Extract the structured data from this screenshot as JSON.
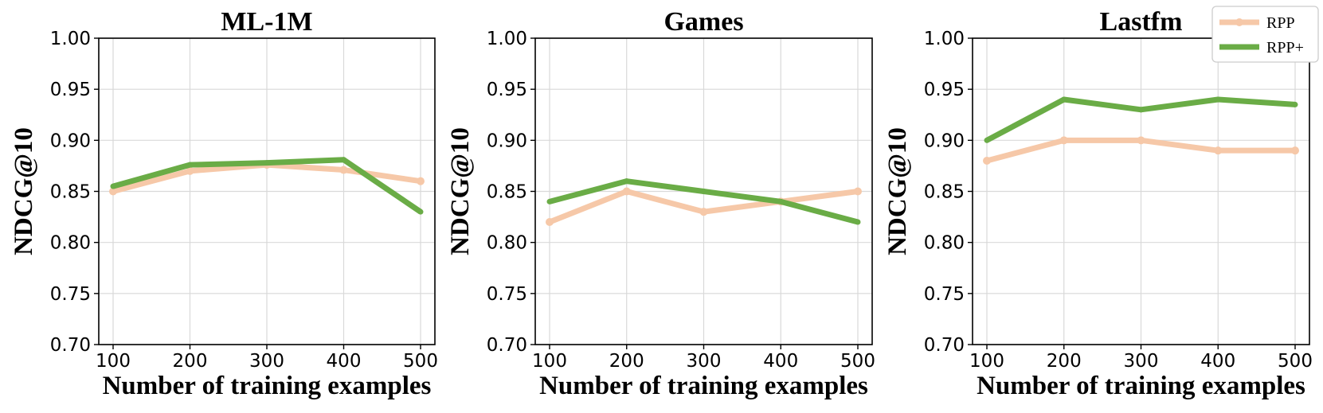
{
  "chart_data": [
    {
      "type": "line",
      "title": "ML-1M",
      "xlabel": "Number of training examples",
      "ylabel": "NDCG@10",
      "x": [
        100,
        200,
        300,
        400,
        500
      ],
      "xticks": [
        "100",
        "200",
        "300",
        "400",
        "500"
      ],
      "yticks": [
        "0.70",
        "0.75",
        "0.80",
        "0.85",
        "0.90",
        "0.95",
        "1.00"
      ],
      "ylim": [
        0.7,
        1.0
      ],
      "grid": true,
      "series": [
        {
          "name": "RPP",
          "values": [
            0.85,
            0.87,
            0.876,
            0.871,
            0.86
          ]
        },
        {
          "name": "RPP+",
          "values": [
            0.855,
            0.876,
            0.878,
            0.881,
            0.83
          ]
        }
      ]
    },
    {
      "type": "line",
      "title": "Games",
      "xlabel": "Number of training examples",
      "ylabel": "NDCG@10",
      "x": [
        100,
        200,
        300,
        400,
        500
      ],
      "xticks": [
        "100",
        "200",
        "300",
        "400",
        "500"
      ],
      "yticks": [
        "0.70",
        "0.75",
        "0.80",
        "0.85",
        "0.90",
        "0.95",
        "1.00"
      ],
      "ylim": [
        0.7,
        1.0
      ],
      "grid": true,
      "series": [
        {
          "name": "RPP",
          "values": [
            0.82,
            0.85,
            0.83,
            0.84,
            0.85
          ]
        },
        {
          "name": "RPP+",
          "values": [
            0.84,
            0.86,
            0.85,
            0.84,
            0.82
          ]
        }
      ]
    },
    {
      "type": "line",
      "title": "Lastfm",
      "xlabel": "Number of training examples",
      "ylabel": "NDCG@10",
      "x": [
        100,
        200,
        300,
        400,
        500
      ],
      "xticks": [
        "100",
        "200",
        "300",
        "400",
        "500"
      ],
      "yticks": [
        "0.70",
        "0.75",
        "0.80",
        "0.85",
        "0.90",
        "0.95",
        "1.00"
      ],
      "ylim": [
        0.7,
        1.0
      ],
      "grid": true,
      "series": [
        {
          "name": "RPP",
          "values": [
            0.88,
            0.9,
            0.9,
            0.89,
            0.89
          ]
        },
        {
          "name": "RPP+",
          "values": [
            0.9,
            0.94,
            0.93,
            0.94,
            0.935
          ]
        }
      ]
    }
  ],
  "legend": {
    "placement": "top-right",
    "entries": [
      {
        "label": "RPP",
        "color": "#f6c8a8",
        "marker": "circle"
      },
      {
        "label": "RPP+",
        "color": "#6aac46",
        "marker": "plus"
      }
    ]
  },
  "colors": {
    "RPP": "#f6c8a8",
    "RPP+": "#6aac46",
    "grid": "#d9d9d9",
    "axis": "#000000"
  }
}
